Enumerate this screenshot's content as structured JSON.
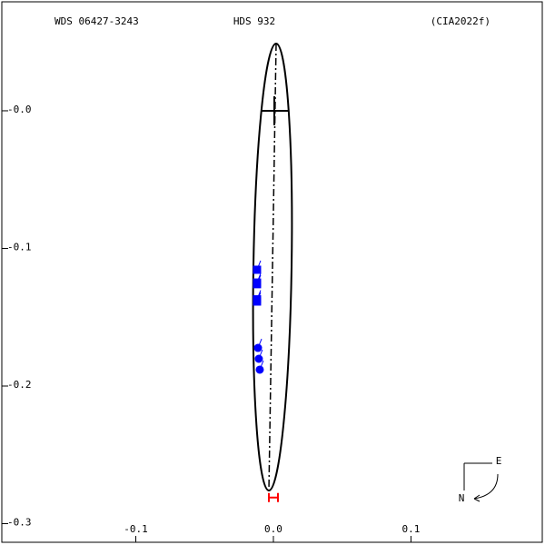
{
  "chart_data": {
    "type": "orbit",
    "title": "HDS 932",
    "left_title": "WDS 06427-3243",
    "right_title": "(CIA2022f)",
    "compass": {
      "east": "E",
      "north": "N"
    },
    "xlim": [
      -0.1987,
      0.1974
    ],
    "ylim": [
      -0.3155,
      0.0805
    ],
    "xticks": [
      -0.1,
      {
        "value": 0,
        "label": "0.0"
      },
      0.1
    ],
    "yticks": [
      {
        "value": 0,
        "label": "-0.0"
      },
      -0.1,
      -0.2,
      -0.3
    ],
    "series": [
      {
        "marker": "square",
        "color": "#0000ff",
        "x": [
          -0.0119,
          -0.0119,
          -0.0119,
          -0.0119,
          -0.0119
        ],
        "y": [
          -0.1155,
          -0.1248,
          -0.126,
          -0.137,
          -0.1386
        ]
      },
      {
        "marker": "circle",
        "color": "#0000ff",
        "x": [
          -0.0112,
          -0.0106,
          -0.0099
        ],
        "y": [
          -0.1723,
          -0.1802,
          -0.1881
        ]
      },
      {
        "marker": "errorbar",
        "color": "#ff0000",
        "x": [
          0.0
        ],
        "y": [
          -0.281
        ]
      }
    ]
  }
}
